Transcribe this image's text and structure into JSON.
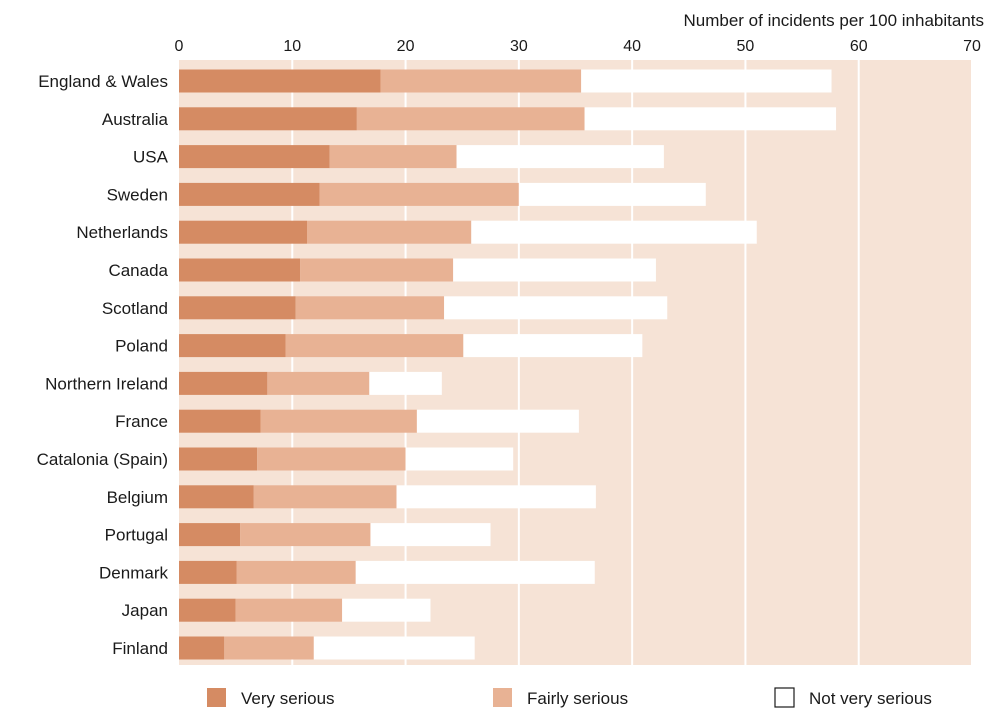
{
  "chart_data": {
    "type": "bar",
    "orientation": "horizontal",
    "stacked": true,
    "xlabel": "Number of incidents per 100 inhabitants",
    "xlim": [
      0,
      70
    ],
    "xticks": [
      0,
      10,
      20,
      30,
      40,
      50,
      60,
      70
    ],
    "grid": true,
    "legend_position": "bottom",
    "categories": [
      "England & Wales",
      "Australia",
      "USA",
      "Sweden",
      "Netherlands",
      "Canada",
      "Scotland",
      "Poland",
      "Northern Ireland",
      "France",
      "Catalonia (Spain)",
      "Belgium",
      "Portugal",
      "Denmark",
      "Japan",
      "Finland"
    ],
    "series": [
      {
        "name": "Very serious",
        "color": "#d58b63",
        "values": [
          17.8,
          15.7,
          13.3,
          12.4,
          11.3,
          10.7,
          10.3,
          9.4,
          7.8,
          7.2,
          6.9,
          6.6,
          5.4,
          5.1,
          5.0,
          4.0
        ]
      },
      {
        "name": "Fairly serious",
        "color": "#e8b294",
        "values": [
          17.7,
          20.1,
          11.2,
          17.6,
          14.5,
          13.5,
          13.1,
          15.7,
          9.0,
          13.8,
          13.1,
          12.6,
          11.5,
          10.5,
          9.4,
          7.9
        ]
      },
      {
        "name": "Not very serious",
        "color": "#ffffff",
        "values": [
          22.1,
          22.2,
          18.3,
          16.5,
          25.2,
          17.9,
          19.7,
          15.8,
          6.4,
          14.3,
          9.5,
          17.6,
          10.6,
          21.1,
          7.8,
          14.2
        ]
      }
    ]
  },
  "colors": {
    "plot_background": "#f6e3d6",
    "grid": "#ffffff",
    "legend_box_border": "#1a1a1a"
  }
}
